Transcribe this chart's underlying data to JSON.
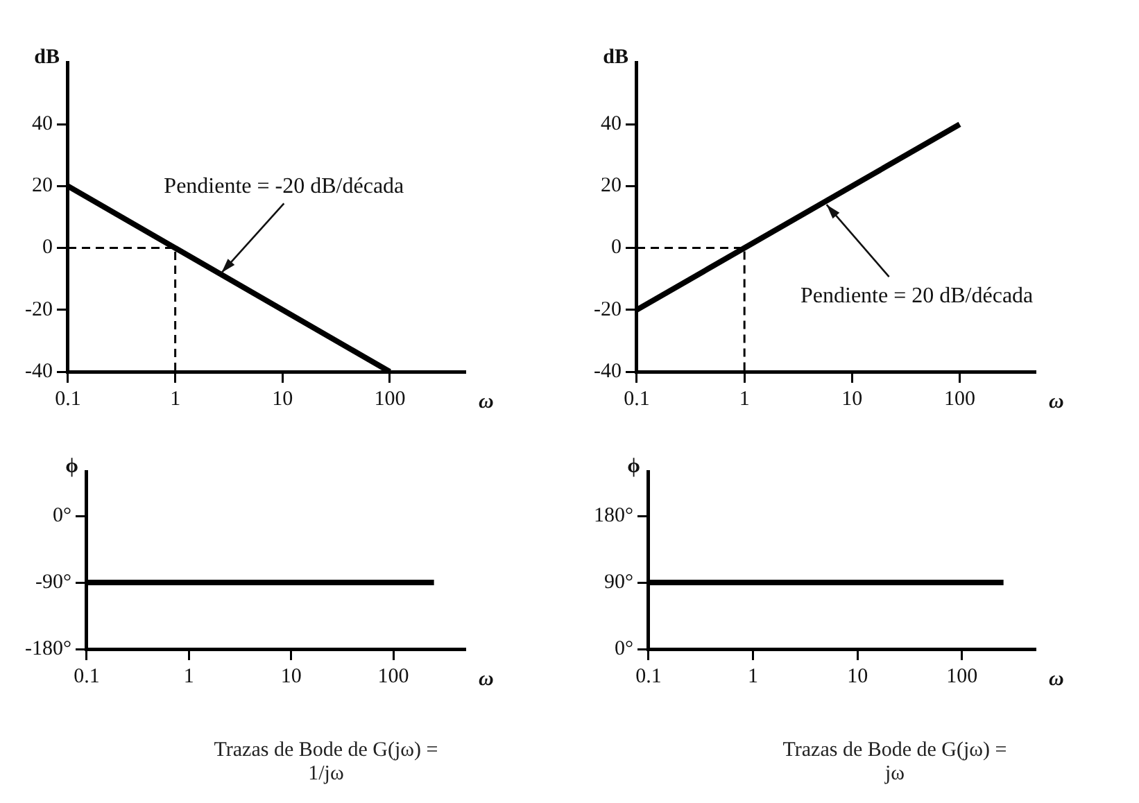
{
  "chart_data": [
    {
      "type": "line",
      "xlabel": "ω",
      "ylabel": "dB",
      "log": "x",
      "xlim": [
        0.1,
        500
      ],
      "xticks": [
        0.1,
        1,
        10,
        100
      ],
      "ylim": [
        -40,
        60
      ],
      "yticks": [
        -40,
        -20,
        0,
        20,
        40
      ],
      "series": [
        {
          "color": "#000000",
          "x": [
            0.1,
            100
          ],
          "values": [
            20,
            -40
          ]
        },
        {
          "color": "#000000",
          "line_style": "dashed",
          "x": [
            0.1,
            1,
            1
          ],
          "values": [
            0,
            0,
            -40
          ]
        }
      ],
      "annotations": [
        {
          "text": "Pendiente = -20 dB/década",
          "x": 2.7,
          "y": -8
        }
      ]
    },
    {
      "type": "line",
      "xlabel": "ω",
      "ylabel": "dB",
      "log": "x",
      "xlim": [
        0.1,
        500
      ],
      "xticks": [
        0.1,
        1,
        10,
        100
      ],
      "ylim": [
        -40,
        60
      ],
      "yticks": [
        -40,
        -20,
        0,
        20,
        40
      ],
      "series": [
        {
          "color": "#000000",
          "x": [
            0.1,
            100
          ],
          "values": [
            -20,
            40
          ]
        },
        {
          "color": "#000000",
          "line_style": "dashed",
          "x": [
            0.1,
            1,
            1
          ],
          "values": [
            0,
            0,
            -40
          ]
        }
      ],
      "annotations": [
        {
          "text": "Pendiente = 20 dB/década",
          "x": 5.8,
          "y": 14
        }
      ]
    },
    {
      "type": "line",
      "title": "Trazas de Bode de G(jω) = 1/jω",
      "xlabel": "ω",
      "ylabel": "ϕ",
      "log": "x",
      "xlim": [
        0.1,
        500
      ],
      "xticks": [
        0.1,
        1,
        10,
        100
      ],
      "ylim": [
        -180,
        60
      ],
      "yticks": [
        {
          "value": -180,
          "label": "-180°"
        },
        {
          "value": -90,
          "label": "-90°"
        },
        {
          "value": 0,
          "label": "0°"
        }
      ],
      "series": [
        {
          "color": "#000000",
          "x": [
            0.1,
            250
          ],
          "values": [
            -90,
            -90
          ]
        }
      ]
    },
    {
      "type": "line",
      "title": "Trazas de Bode de G(jω) = jω",
      "xlabel": "ω",
      "ylabel": "ϕ",
      "log": "x",
      "xlim": [
        0.1,
        500
      ],
      "xticks": [
        0.1,
        1,
        10,
        100
      ],
      "ylim": [
        0,
        240
      ],
      "yticks": [
        {
          "value": 0,
          "label": "0°"
        },
        {
          "value": 90,
          "label": "90°"
        },
        {
          "value": 180,
          "label": "180°"
        }
      ],
      "series": [
        {
          "color": "#000000",
          "x": [
            0.1,
            250
          ],
          "values": [
            90,
            90
          ]
        }
      ]
    }
  ]
}
